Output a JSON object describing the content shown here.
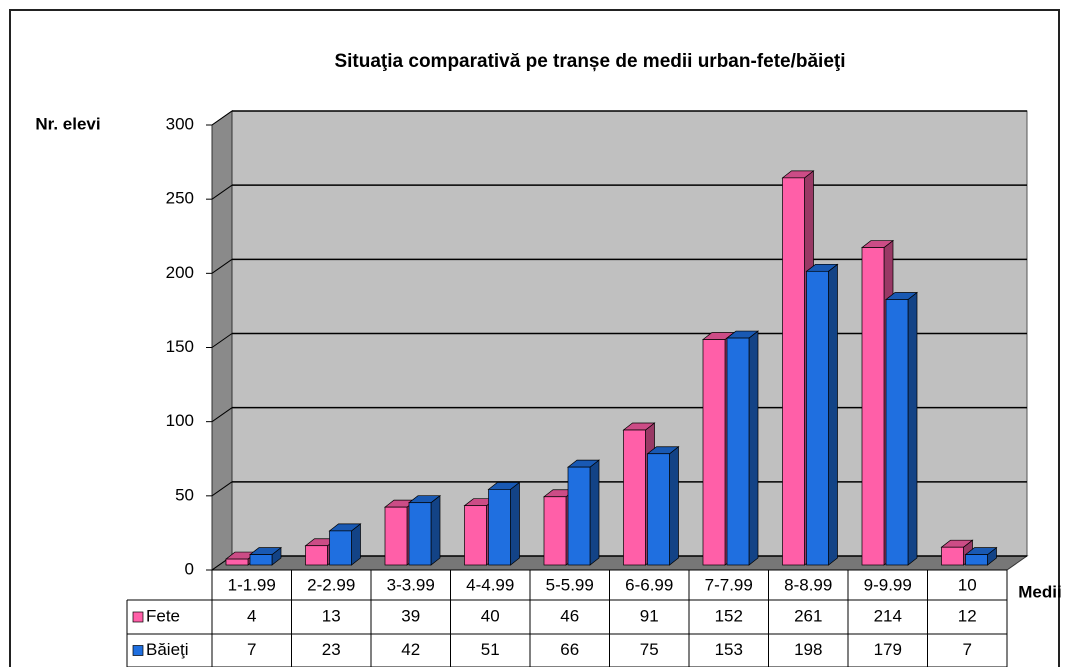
{
  "chart_data": {
    "type": "bar3d",
    "title": "Situaţia comparativă pe tranșe de medii urban-fete/băieţi",
    "y_label": "Nr. elevi",
    "x_label": "Medii",
    "categories": [
      "1-1.99",
      "2-2.99",
      "3-3.99",
      "4-4.99",
      "5-5.99",
      "6-6.99",
      "7-7.99",
      "8-8.99",
      "9-9.99",
      "10"
    ],
    "series": [
      {
        "name": "Fete",
        "color": "#ff5fa8",
        "values": [
          4,
          13,
          39,
          40,
          46,
          91,
          152,
          261,
          214,
          12
        ]
      },
      {
        "name": "Băieţi",
        "color": "#1f6fe0",
        "values": [
          7,
          23,
          42,
          51,
          66,
          75,
          153,
          198,
          179,
          7
        ]
      }
    ],
    "ylim": [
      0,
      300
    ],
    "yticks": [
      0,
      50,
      100,
      150,
      200,
      250,
      300
    ],
    "grid": true,
    "data_table": true
  }
}
